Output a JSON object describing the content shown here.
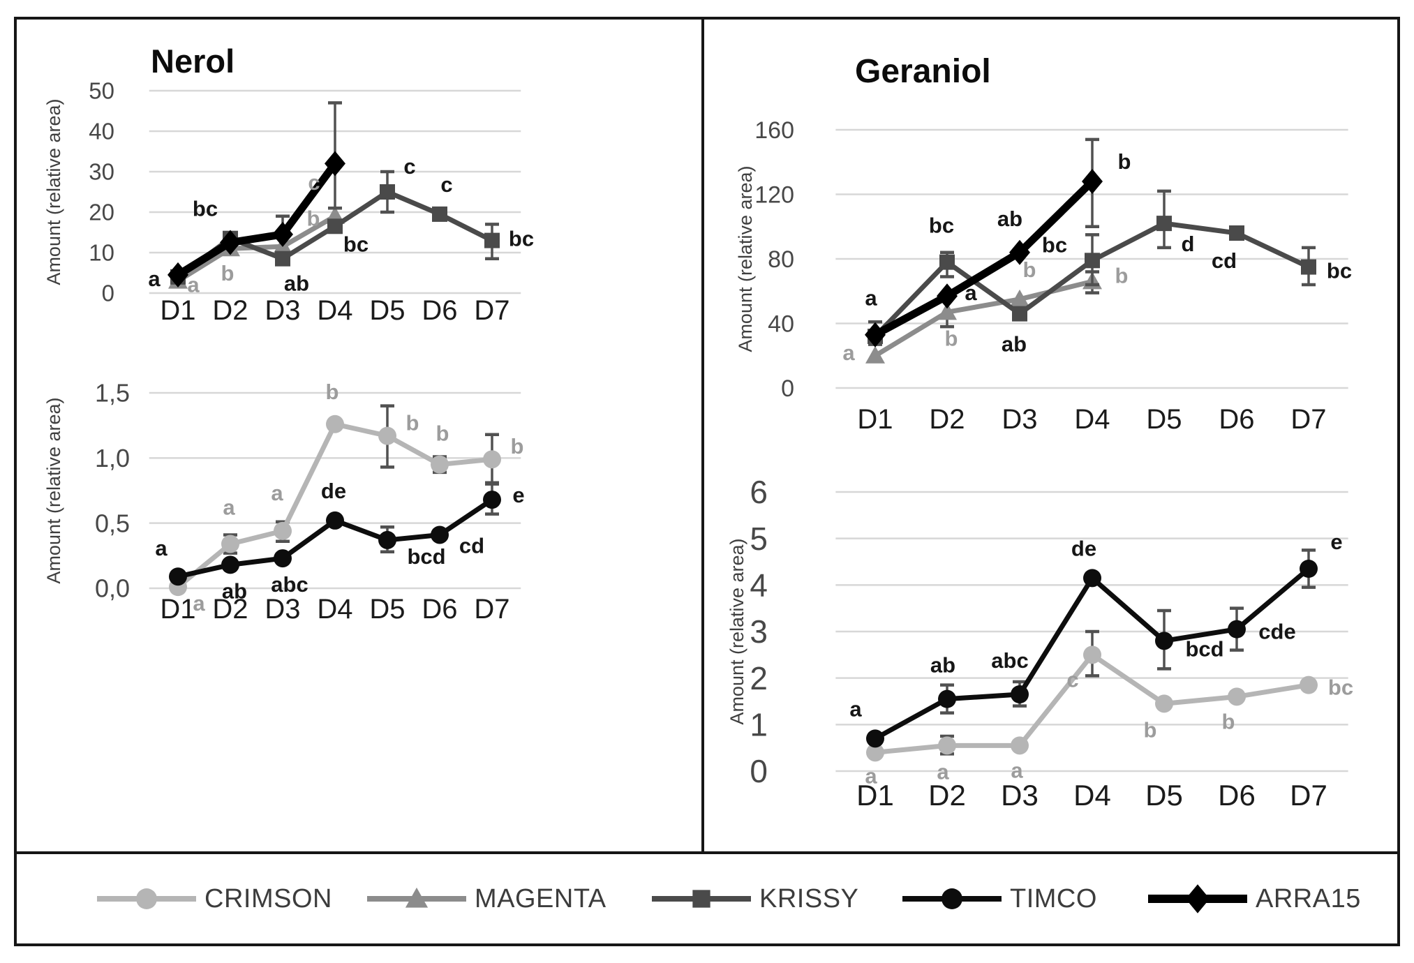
{
  "figure": {
    "left_panel_title": "Nerol",
    "right_panel_title": "Geraniol",
    "ylabel": "Amount (relative area)",
    "x_categories": [
      "D1",
      "D2",
      "D3",
      "D4",
      "D5",
      "D6",
      "D7"
    ],
    "colors": {
      "crimson": "#b5b5b5",
      "magenta": "#8c8c8c",
      "krissy": "#4a4a4a",
      "timco": "#0d0d0d",
      "arra15": "#000000",
      "error_bar": "#515151",
      "gridline": "#d7d7d7",
      "sig_dark": "#161616",
      "sig_gray": "#9c9c9c"
    }
  },
  "legend": {
    "position": "bottom",
    "items": [
      {
        "label": "CRIMSON",
        "marker": "circle",
        "color": "#b5b5b5",
        "line_width": 8
      },
      {
        "label": "MAGENTA",
        "marker": "triangle",
        "color": "#8c8c8c",
        "line_width": 8
      },
      {
        "label": "KRISSY",
        "marker": "square",
        "color": "#4a4a4a",
        "line_width": 8
      },
      {
        "label": "TIMCO",
        "marker": "circle",
        "color": "#0d0d0d",
        "line_width": 8
      },
      {
        "label": "ARRA15",
        "marker": "diamond",
        "color": "#000000",
        "line_width": 12
      }
    ]
  },
  "chart_data": [
    {
      "id": "nerol-upper",
      "type": "line",
      "title": "Nerol",
      "ylabel": "Amount (relative area)",
      "categories": [
        "D1",
        "D2",
        "D3",
        "D4",
        "D5",
        "D6",
        "D7"
      ],
      "ylim": [
        0,
        50
      ],
      "grid": true,
      "yticks": [
        {
          "v": 0,
          "label": "0"
        },
        {
          "v": 10,
          "label": "10"
        },
        {
          "v": 20,
          "label": "20"
        },
        {
          "v": 30,
          "label": "30"
        },
        {
          "v": 40,
          "label": "40"
        },
        {
          "v": 50,
          "label": "50"
        }
      ],
      "series": [
        {
          "name": "MAGENTA",
          "marker": "triangle",
          "color": "#8c8c8c",
          "line_width": 7,
          "points": [
            {
              "x": "D1",
              "v": 3,
              "sig": "a",
              "sig_color": "gray",
              "dx": 22,
              "dy": 16
            },
            {
              "x": "D2",
              "v": 11,
              "sig": "b",
              "sig_color": "gray",
              "dx": -4,
              "dy": 46
            },
            {
              "x": "D3",
              "v": 11.5,
              "err": [
                9,
                19
              ],
              "sig": "b",
              "sig_color": "gray",
              "dx": 44,
              "dy": -30
            },
            {
              "x": "D4",
              "v": 19,
              "err": [
                16.5,
                21
              ],
              "sig": "c",
              "sig_color": "gray",
              "dx": -30,
              "dy": -38
            }
          ]
        },
        {
          "name": "KRISSY",
          "marker": "square",
          "color": "#4a4a4a",
          "line_width": 7,
          "points": [
            {
              "x": "D1",
              "v": 4
            },
            {
              "x": "D2",
              "v": 13.5,
              "sig": "bc",
              "sig_color": "dark",
              "dx": -36,
              "dy": -32
            },
            {
              "x": "D3",
              "v": 8.5,
              "sig": "ab",
              "sig_color": "dark",
              "dx": 20,
              "dy": 46
            },
            {
              "x": "D4",
              "v": 16.5,
              "sig": "bc",
              "sig_color": "dark",
              "dx": 30,
              "dy": 36
            },
            {
              "x": "D5",
              "v": 25,
              "err": [
                20,
                30
              ],
              "sig": "c",
              "sig_color": "dark",
              "dx": 32,
              "dy": -26
            },
            {
              "x": "D6",
              "v": 19.5,
              "sig": "c",
              "sig_color": "dark",
              "dx": 10,
              "dy": -32
            },
            {
              "x": "D7",
              "v": 13,
              "err": [
                8.5,
                17
              ],
              "sig": "bc",
              "sig_color": "dark",
              "dx": 42,
              "dy": 8
            }
          ]
        },
        {
          "name": "ARRA15",
          "marker": "diamond",
          "color": "#000000",
          "line_width": 11,
          "points": [
            {
              "x": "D1",
              "v": 4.5,
              "sig": "a",
              "sig_color": "dark",
              "dx": -34,
              "dy": 16
            },
            {
              "x": "D2",
              "v": 12.5
            },
            {
              "x": "D3",
              "v": 14.5
            },
            {
              "x": "D4",
              "v": 32,
              "err": [
                21,
                47
              ]
            }
          ]
        }
      ]
    },
    {
      "id": "geraniol-upper",
      "type": "line",
      "title": "Geraniol",
      "ylabel": "Amount (relative area)",
      "categories": [
        "D1",
        "D2",
        "D3",
        "D4",
        "D5",
        "D6",
        "D7"
      ],
      "ylim": [
        0,
        160
      ],
      "grid": true,
      "yticks": [
        {
          "v": 0,
          "label": "0"
        },
        {
          "v": 40,
          "label": "40"
        },
        {
          "v": 80,
          "label": "80"
        },
        {
          "v": 120,
          "label": "120"
        },
        {
          "v": 160,
          "label": "160"
        }
      ],
      "series": [
        {
          "name": "MAGENTA",
          "marker": "triangle",
          "color": "#8c8c8c",
          "line_width": 7,
          "points": [
            {
              "x": "D1",
              "v": 20,
              "sig": "a",
              "sig_color": "gray",
              "dx": -38,
              "dy": 6
            },
            {
              "x": "D2",
              "v": 47,
              "err": [
                38,
                56
              ],
              "sig": "b",
              "sig_color": "gray",
              "dx": 6,
              "dy": 48
            },
            {
              "x": "D3",
              "v": 55,
              "sig": "b",
              "sig_color": "gray",
              "dx": 14,
              "dy": -32
            },
            {
              "x": "D4",
              "v": 66,
              "err": [
                59,
                72
              ],
              "sig": "b",
              "sig_color": "gray",
              "dx": 42,
              "dy": 2
            }
          ]
        },
        {
          "name": "KRISSY",
          "marker": "square",
          "color": "#4a4a4a",
          "line_width": 7,
          "points": [
            {
              "x": "D1",
              "v": 32
            },
            {
              "x": "D2",
              "v": 78,
              "err": [
                69,
                84
              ],
              "sig": "bc",
              "sig_color": "dark",
              "dx": -8,
              "dy": -42
            },
            {
              "x": "D3",
              "v": 46,
              "sig": "ab",
              "sig_color": "dark",
              "dx": -8,
              "dy": 54
            },
            {
              "x": "D4",
              "v": 79,
              "err": [
                64,
                95
              ],
              "sig": "bc",
              "sig_color": "dark",
              "dx": -54,
              "dy": -12
            },
            {
              "x": "D5",
              "v": 102,
              "err": [
                87,
                122
              ],
              "sig": "d",
              "sig_color": "dark",
              "dx": 34,
              "dy": 40
            },
            {
              "x": "D6",
              "v": 96,
              "sig": "cd",
              "sig_color": "dark",
              "dx": -18,
              "dy": 50
            },
            {
              "x": "D7",
              "v": 75,
              "err": [
                64,
                87
              ],
              "sig": "bc",
              "sig_color": "dark",
              "dx": 44,
              "dy": 16
            }
          ]
        },
        {
          "name": "ARRA15",
          "marker": "diamond",
          "color": "#000000",
          "line_width": 11,
          "points": [
            {
              "x": "D1",
              "v": 33,
              "err": [
                27,
                41
              ],
              "sig": "a",
              "sig_color": "dark",
              "dx": -6,
              "dy": -42
            },
            {
              "x": "D2",
              "v": 57,
              "sig": "a",
              "sig_color": "dark",
              "dx": 34,
              "dy": 6
            },
            {
              "x": "D3",
              "v": 84,
              "sig": "ab",
              "sig_color": "dark",
              "dx": -14,
              "dy": -38
            },
            {
              "x": "D4",
              "v": 128,
              "err": [
                100,
                154
              ],
              "sig": "b",
              "sig_color": "dark",
              "dx": 46,
              "dy": -18
            }
          ]
        }
      ]
    },
    {
      "id": "nerol-lower",
      "type": "line",
      "title": "",
      "ylabel": "Amount (relative area)",
      "categories": [
        "D1",
        "D2",
        "D3",
        "D4",
        "D5",
        "D6",
        "D7"
      ],
      "ylim": [
        0,
        1.5
      ],
      "grid": true,
      "yticks": [
        {
          "v": 0,
          "label": "0,0"
        },
        {
          "v": 0.5,
          "label": "0,5"
        },
        {
          "v": 1.0,
          "label": "1,0"
        },
        {
          "v": 1.5,
          "label": "1,5"
        }
      ],
      "series": [
        {
          "name": "CRIMSON",
          "marker": "circle",
          "color": "#b5b5b5",
          "line_width": 7,
          "points": [
            {
              "x": "D1",
              "v": 0.01,
              "sig": "a",
              "sig_color": "gray",
              "dx": 30,
              "dy": 34
            },
            {
              "x": "D2",
              "v": 0.34,
              "err": [
                0.27,
                0.41
              ],
              "sig": "a",
              "sig_color": "gray",
              "dx": -2,
              "dy": -42
            },
            {
              "x": "D3",
              "v": 0.44,
              "err": [
                0.36,
                0.51
              ],
              "sig": "a",
              "sig_color": "gray",
              "dx": -8,
              "dy": -44
            },
            {
              "x": "D4",
              "v": 1.26,
              "sig": "b",
              "sig_color": "gray",
              "dx": -4,
              "dy": -36
            },
            {
              "x": "D5",
              "v": 1.17,
              "err": [
                0.93,
                1.4
              ],
              "sig": "b",
              "sig_color": "gray",
              "dx": 36,
              "dy": -8
            },
            {
              "x": "D6",
              "v": 0.95,
              "err": [
                0.89,
                1.01
              ],
              "sig": "b",
              "sig_color": "gray",
              "dx": 4,
              "dy": -34
            },
            {
              "x": "D7",
              "v": 0.99,
              "err": [
                0.81,
                1.18
              ],
              "sig": "b",
              "sig_color": "gray",
              "dx": 36,
              "dy": -8
            }
          ]
        },
        {
          "name": "TIMCO",
          "marker": "circle",
          "color": "#0d0d0d",
          "line_width": 7,
          "points": [
            {
              "x": "D1",
              "v": 0.09,
              "sig": "a",
              "sig_color": "dark",
              "dx": -24,
              "dy": -30
            },
            {
              "x": "D2",
              "v": 0.18,
              "sig": "ab",
              "sig_color": "dark",
              "dx": 6,
              "dy": 48
            },
            {
              "x": "D3",
              "v": 0.23,
              "sig": "abc",
              "sig_color": "dark",
              "dx": 10,
              "dy": 48
            },
            {
              "x": "D4",
              "v": 0.52,
              "sig": "de",
              "sig_color": "dark",
              "dx": -2,
              "dy": -32
            },
            {
              "x": "D5",
              "v": 0.37,
              "err": [
                0.28,
                0.47
              ],
              "sig": "bcd",
              "sig_color": "dark",
              "dx": 56,
              "dy": 34
            },
            {
              "x": "D6",
              "v": 0.41,
              "sig": "cd",
              "sig_color": "dark",
              "dx": 46,
              "dy": 26
            },
            {
              "x": "D7",
              "v": 0.68,
              "err": [
                0.57,
                0.8
              ],
              "sig": "e",
              "sig_color": "dark",
              "dx": 38,
              "dy": 4
            }
          ]
        }
      ]
    },
    {
      "id": "geraniol-lower",
      "type": "line",
      "title": "",
      "ylabel": "Amount (relative area)",
      "categories": [
        "D1",
        "D2",
        "D3",
        "D4",
        "D5",
        "D6",
        "D7"
      ],
      "ylim": [
        0,
        6
      ],
      "grid": true,
      "yticks": [
        {
          "v": 0,
          "label": "0"
        },
        {
          "v": 1,
          "label": "1"
        },
        {
          "v": 2,
          "label": "2"
        },
        {
          "v": 3,
          "label": "3"
        },
        {
          "v": 4,
          "label": "4"
        },
        {
          "v": 5,
          "label": "5"
        },
        {
          "v": 6,
          "label": "6"
        }
      ],
      "series": [
        {
          "name": "CRIMSON",
          "marker": "circle",
          "color": "#b5b5b5",
          "line_width": 7,
          "points": [
            {
              "x": "D1",
              "v": 0.4,
              "sig": "a",
              "sig_color": "gray",
              "dx": -6,
              "dy": 44
            },
            {
              "x": "D2",
              "v": 0.55,
              "err": [
                0.37,
                0.75
              ],
              "sig": "a",
              "sig_color": "gray",
              "dx": -6,
              "dy": 48
            },
            {
              "x": "D3",
              "v": 0.55,
              "sig": "a",
              "sig_color": "gray",
              "dx": -4,
              "dy": 46
            },
            {
              "x": "D4",
              "v": 2.5,
              "err": [
                2.05,
                3.0
              ],
              "sig": "c",
              "sig_color": "gray",
              "dx": -28,
              "dy": 46
            },
            {
              "x": "D5",
              "v": 1.45,
              "sig": "b",
              "sig_color": "gray",
              "dx": -20,
              "dy": 48
            },
            {
              "x": "D6",
              "v": 1.6,
              "sig": "b",
              "sig_color": "gray",
              "dx": -12,
              "dy": 46
            },
            {
              "x": "D7",
              "v": 1.85,
              "sig": "bc",
              "sig_color": "gray",
              "dx": 46,
              "dy": 14
            }
          ]
        },
        {
          "name": "TIMCO",
          "marker": "circle",
          "color": "#0d0d0d",
          "line_width": 7,
          "points": [
            {
              "x": "D1",
              "v": 0.7,
              "sig": "a",
              "sig_color": "dark",
              "dx": -28,
              "dy": -32
            },
            {
              "x": "D2",
              "v": 1.55,
              "err": [
                1.25,
                1.85
              ],
              "sig": "ab",
              "sig_color": "dark",
              "dx": -6,
              "dy": -38
            },
            {
              "x": "D3",
              "v": 1.65,
              "err": [
                1.4,
                1.92
              ],
              "sig": "abc",
              "sig_color": "dark",
              "dx": -14,
              "dy": -38
            },
            {
              "x": "D4",
              "v": 4.15,
              "sig": "de",
              "sig_color": "dark",
              "dx": -12,
              "dy": -32
            },
            {
              "x": "D5",
              "v": 2.8,
              "err": [
                2.2,
                3.45
              ],
              "sig": "bcd",
              "sig_color": "dark",
              "dx": 58,
              "dy": 22
            },
            {
              "x": "D6",
              "v": 3.05,
              "err": [
                2.6,
                3.5
              ],
              "sig": "cde",
              "sig_color": "dark",
              "dx": 58,
              "dy": 14
            },
            {
              "x": "D7",
              "v": 4.35,
              "err": [
                3.95,
                4.75
              ],
              "sig": "e",
              "sig_color": "dark",
              "dx": 40,
              "dy": -28
            }
          ]
        }
      ]
    }
  ]
}
